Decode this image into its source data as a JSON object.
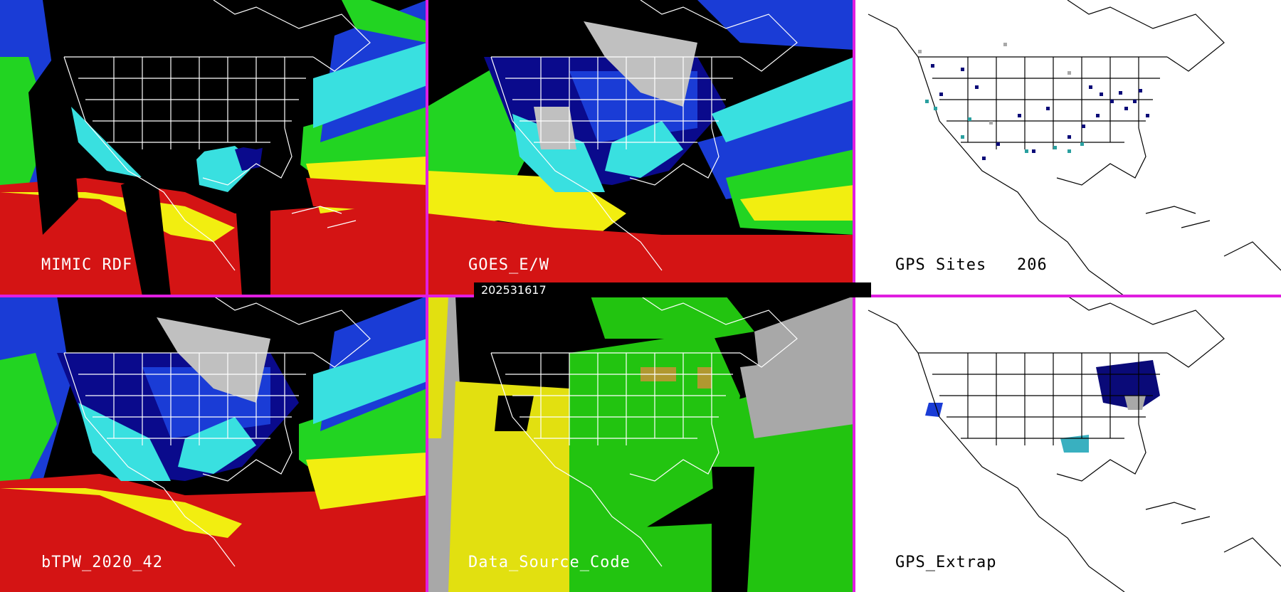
{
  "timestamp": "202531617",
  "panels": {
    "top_left": {
      "label": "MIMIC RDF"
    },
    "top_center": {
      "label": "GOES_E/W"
    },
    "top_right": {
      "label": "GPS Sites",
      "count": "206"
    },
    "bottom_left": {
      "label": "bTPW_2020_42"
    },
    "bottom_center": {
      "label": "Data_Source_Code"
    },
    "bottom_right": {
      "label": "GPS_Extrap"
    }
  },
  "colors": {
    "divider": "#e01ee0",
    "ocean_dry": "#000000",
    "tpw_dark_blue": "#0a0a8c",
    "tpw_blue": "#1a3cd6",
    "tpw_cyan": "#39e0e0",
    "tpw_green": "#22d422",
    "tpw_yellow": "#f2ee10",
    "tpw_red": "#d41414",
    "source_green": "#22c410",
    "source_yellow": "#e2e010",
    "source_gray": "#a8a8a8",
    "gps_site_navy": "#0a0a78",
    "gps_site_teal": "#2aa0a0"
  }
}
